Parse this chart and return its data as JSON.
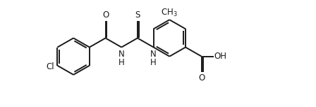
{
  "bg_color": "#ffffff",
  "line_color": "#1a1a1a",
  "line_width": 1.4,
  "font_size": 8.5,
  "figsize": [
    4.48,
    1.53
  ],
  "dpi": 100,
  "xlim": [
    -4.2,
    7.8
  ],
  "ylim": [
    -2.5,
    2.2
  ]
}
